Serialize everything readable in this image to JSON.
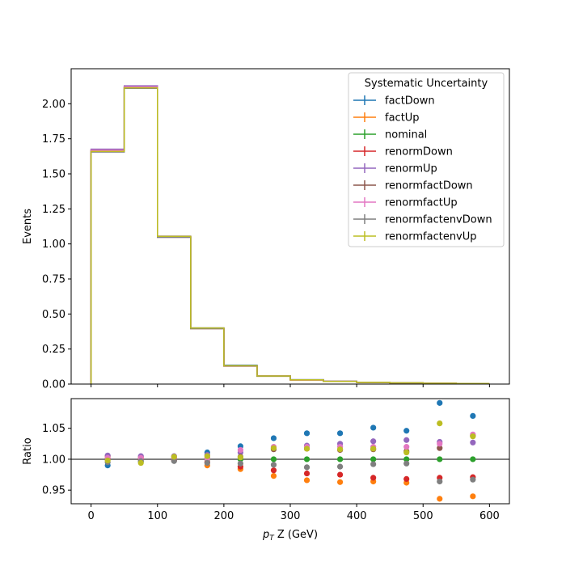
{
  "chart_data": [
    {
      "type": "line",
      "panel": "main",
      "ylabel": "Events",
      "ylim": [
        0,
        2.25
      ],
      "xlim": [
        -30,
        630
      ],
      "yticks": [
        0.0,
        0.25,
        0.5,
        0.75,
        1.0,
        1.25,
        1.5,
        1.75,
        2.0
      ],
      "ytick_labels": [
        "0.00",
        "0.25",
        "0.50",
        "0.75",
        "1.00",
        "1.25",
        "1.50",
        "1.75",
        "2.00"
      ],
      "legend_title": "Systematic Uncertainty",
      "legend_position": "top-right",
      "bin_edges": [
        0,
        50,
        100,
        150,
        200,
        250,
        300,
        350,
        400,
        450,
        500,
        550,
        600
      ],
      "series": [
        {
          "name": "factDown",
          "color": "#1f77b4",
          "values": [
            1.66,
            2.115,
            1.05,
            0.4,
            0.135,
            0.059,
            0.0313,
            0.0202,
            0.0128,
            0.00886,
            0.00575,
            0.00374
          ]
        },
        {
          "name": "factUp",
          "color": "#ff7f0e",
          "values": [
            1.672,
            2.122,
            1.052,
            0.396,
            0.128,
            0.0555,
            0.029,
            0.0189,
            0.0121,
            0.00822,
            0.00515,
            0.00342
          ]
        },
        {
          "name": "nominal",
          "color": "#2ca02c",
          "values": [
            1.664,
            2.117,
            1.05,
            0.397,
            0.13,
            0.057,
            0.03,
            0.0195,
            0.0124,
            0.00845,
            0.0055,
            0.0035
          ]
        },
        {
          "name": "renormDown",
          "color": "#d62728",
          "values": [
            1.666,
            2.116,
            1.048,
            0.396,
            0.129,
            0.056,
            0.0293,
            0.019,
            0.012,
            0.00818,
            0.00534,
            0.0034
          ]
        },
        {
          "name": "renormUp",
          "color": "#9467bd",
          "values": [
            1.676,
            2.128,
            1.056,
            0.4,
            0.131,
            0.058,
            0.0307,
            0.02,
            0.0127,
            0.00871,
            0.00566,
            0.0036
          ]
        },
        {
          "name": "renormfactDown",
          "color": "#8c564b",
          "values": [
            1.664,
            2.117,
            1.05,
            0.398,
            0.131,
            0.058,
            0.0305,
            0.0198,
            0.0126,
            0.00856,
            0.0056,
            0.00363
          ]
        },
        {
          "name": "renormfactUp",
          "color": "#e377c2",
          "values": [
            1.668,
            2.121,
            1.052,
            0.398,
            0.132,
            0.058,
            0.0306,
            0.0199,
            0.0127,
            0.00861,
            0.00564,
            0.00364
          ]
        },
        {
          "name": "renormfactenvDown",
          "color": "#7f7f7f",
          "values": [
            1.656,
            2.11,
            1.047,
            0.395,
            0.129,
            0.0565,
            0.0296,
            0.0193,
            0.0122,
            0.00838,
            0.0053,
            0.00338
          ]
        },
        {
          "name": "renormfactenvUp",
          "color": "#bcbd22",
          "values": [
            1.66,
            2.114,
            1.054,
            0.4,
            0.131,
            0.058,
            0.0305,
            0.0198,
            0.0126,
            0.00855,
            0.00582,
            0.00363
          ]
        }
      ]
    },
    {
      "type": "scatter",
      "panel": "ratio",
      "xlabel_prefix": "p",
      "xlabel_sub": "T",
      "xlabel_suffix": " Z (GeV)",
      "ylabel": "Ratio",
      "xlim": [
        -30,
        630
      ],
      "ylim": [
        0.928,
        1.098
      ],
      "xticks": [
        0,
        100,
        200,
        300,
        400,
        500,
        600
      ],
      "xtick_labels": [
        "0",
        "100",
        "200",
        "300",
        "400",
        "500",
        "600"
      ],
      "yticks": [
        0.95,
        1.0,
        1.05
      ],
      "ytick_labels": [
        "0.95",
        "1.00",
        "1.05"
      ],
      "reference_line": 1.0,
      "x": [
        25,
        75,
        125,
        175,
        225,
        275,
        325,
        375,
        425,
        475,
        525,
        575
      ],
      "series": [
        {
          "name": "factDown",
          "color": "#1f77b4",
          "values": [
            0.99,
            0.996,
            1.0,
            1.011,
            1.021,
            1.034,
            1.042,
            1.042,
            1.051,
            1.046,
            1.091,
            1.07
          ]
        },
        {
          "name": "factUp",
          "color": "#ff7f0e",
          "values": [
            1.005,
            1.003,
            1.001,
            0.99,
            0.984,
            0.973,
            0.966,
            0.963,
            0.964,
            0.962,
            0.936,
            0.94
          ]
        },
        {
          "name": "nominal",
          "color": "#2ca02c",
          "values": [
            1.0,
            1.0,
            1.0,
            1.0,
            1.0,
            1.0,
            1.0,
            1.0,
            1.0,
            1.0,
            1.0,
            1.0
          ]
        },
        {
          "name": "renormDown",
          "color": "#d62728",
          "values": [
            1.001,
            1.0,
            0.998,
            0.995,
            0.988,
            0.982,
            0.977,
            0.975,
            0.97,
            0.968,
            0.97,
            0.971
          ]
        },
        {
          "name": "renormUp",
          "color": "#9467bd",
          "values": [
            1.006,
            1.005,
            1.005,
            1.007,
            1.011,
            1.018,
            1.022,
            1.025,
            1.029,
            1.031,
            1.028,
            1.027
          ]
        },
        {
          "name": "renormfactDown",
          "color": "#8c564b",
          "values": [
            1.0,
            1.0,
            1.0,
            1.002,
            1.004,
            1.016,
            1.017,
            1.015,
            1.016,
            1.013,
            1.018,
            1.038
          ]
        },
        {
          "name": "renormfactUp",
          "color": "#e377c2",
          "values": [
            1.002,
            1.002,
            1.002,
            1.001,
            1.015,
            1.02,
            1.02,
            1.02,
            1.02,
            1.02,
            1.025,
            1.04
          ]
        },
        {
          "name": "renormfactenvDown",
          "color": "#7f7f7f",
          "values": [
            0.995,
            0.997,
            0.997,
            0.994,
            0.993,
            0.991,
            0.987,
            0.988,
            0.992,
            0.993,
            0.964,
            0.967
          ]
        },
        {
          "name": "renormfactenvUp",
          "color": "#bcbd22",
          "values": [
            0.998,
            0.994,
            1.004,
            1.005,
            1.003,
            1.018,
            1.017,
            1.016,
            1.017,
            1.011,
            1.058,
            1.037
          ]
        }
      ]
    }
  ]
}
